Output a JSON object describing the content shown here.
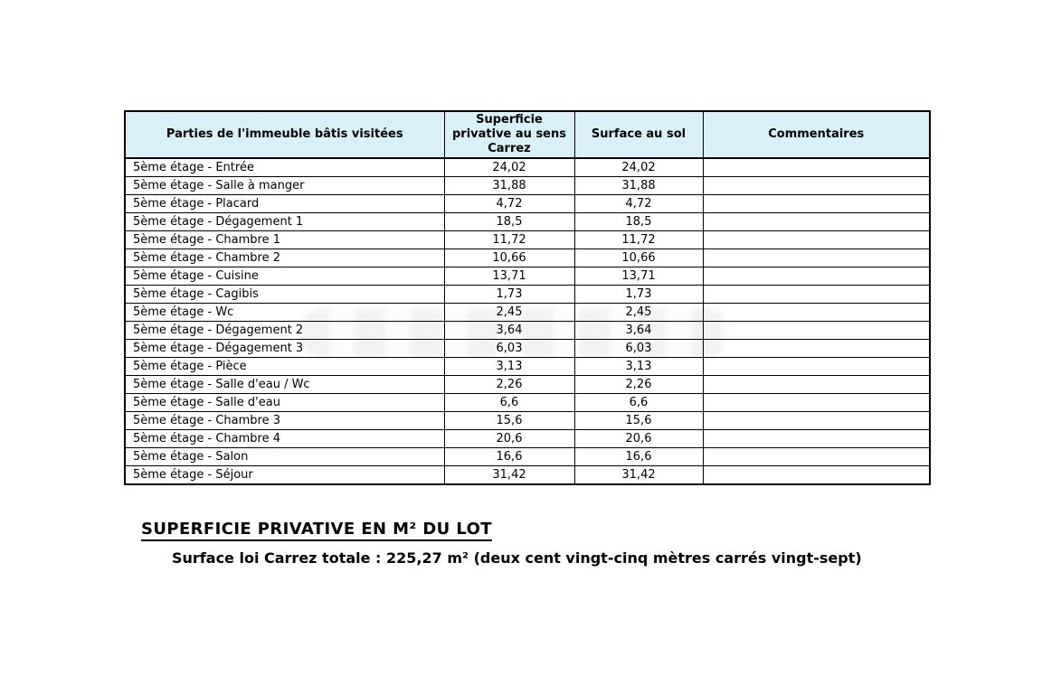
{
  "colors": {
    "header_bg": "#d8f1f8",
    "border": "#000000",
    "text": "#000000",
    "page_bg": "#ffffff"
  },
  "table": {
    "headers": [
      "Parties de l'immeuble bâtis visitées",
      "Superficie privative au sens Carrez",
      "Surface au sol",
      "Commentaires"
    ],
    "col_keys": [
      "partie",
      "superficie-carrez",
      "surface-sol",
      "commentaire"
    ],
    "rows": [
      [
        "5ème étage - Entrée",
        "24,02",
        "24,02",
        ""
      ],
      [
        "5ème étage - Salle à manger",
        "31,88",
        "31,88",
        ""
      ],
      [
        "5ème étage - Placard",
        "4,72",
        "4,72",
        ""
      ],
      [
        "5ème étage - Dégagement 1",
        "18,5",
        "18,5",
        ""
      ],
      [
        "5ème étage - Chambre 1",
        "11,72",
        "11,72",
        ""
      ],
      [
        "5ème étage - Chambre 2",
        "10,66",
        "10,66",
        ""
      ],
      [
        "5ème étage - Cuisine",
        "13,71",
        "13,71",
        ""
      ],
      [
        "5ème étage - Cagibis",
        "1,73",
        "1,73",
        ""
      ],
      [
        "5ème étage - Wc",
        "2,45",
        "2,45",
        ""
      ],
      [
        "5ème étage - Dégagement 2",
        "3,64",
        "3,64",
        ""
      ],
      [
        "5ème étage - Dégagement 3",
        "6,03",
        "6,03",
        ""
      ],
      [
        "5ème étage - Pièce",
        "3,13",
        "3,13",
        ""
      ],
      [
        "5ème étage - Salle d'eau / Wc",
        "2,26",
        "2,26",
        ""
      ],
      [
        "5ème étage - Salle d'eau",
        "6,6",
        "6,6",
        ""
      ],
      [
        "5ème étage - Chambre 3",
        "15,6",
        "15,6",
        ""
      ],
      [
        "5ème étage - Chambre 4",
        "20,6",
        "20,6",
        ""
      ],
      [
        "5ème étage - Salon",
        "16,6",
        "16,6",
        ""
      ],
      [
        "5ème étage - Séjour",
        "31,42",
        "31,42",
        ""
      ]
    ]
  },
  "summary": {
    "title": "SUPERFICIE PRIVATIVE EN M² DU LOT",
    "total_line": "Surface loi Carrez totale : 225,27 m² (deux cent vingt-cinq mètres carrés vingt-sept)"
  }
}
